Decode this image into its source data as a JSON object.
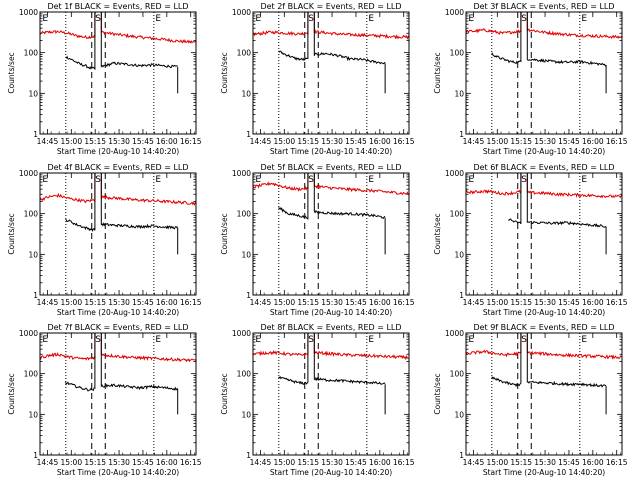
{
  "chart_data": {
    "type": "line",
    "shared": {
      "xlabel": "Start Time (20-Aug-10 14:40:20)",
      "ylabel": "Counts/sec",
      "x_tick_labels": [
        "14:45",
        "15:00",
        "15:15",
        "15:30",
        "15:45",
        "16:00",
        "16:15"
      ],
      "x_ticks_min": [
        4.67,
        19.67,
        34.67,
        49.67,
        64.67,
        79.67,
        94.67
      ],
      "xlim_min": [
        0,
        98
      ],
      "y_tick_labels": [
        "1",
        "10",
        "100",
        "1000"
      ],
      "ylim": [
        1,
        1000
      ],
      "yscale": "log",
      "gap_min": [
        34.5,
        38.5
      ],
      "dashed_lines_min": [
        32.5,
        41.0
      ],
      "dotted_lines_min": [
        16.2,
        71.5
      ],
      "marker_labels": [
        "E",
        "S",
        "E"
      ],
      "marker_positions_min": [
        1.5,
        36.5,
        72.5
      ],
      "series_names": [
        "Events",
        "LLD"
      ],
      "series_colors": [
        "#000000",
        "#e00000"
      ]
    },
    "panels": [
      {
        "title": "Det 1f BLACK = Events, RED = LLD",
        "events": [
          80,
          70,
          60,
          52,
          48,
          42,
          40
        ],
        "events_after": [
          45,
          55,
          52,
          48,
          50,
          47,
          45
        ],
        "lld": [
          300,
          320,
          330,
          300,
          260,
          240,
          250
        ],
        "lld_after": [
          320,
          280,
          250,
          230,
          210,
          190,
          180
        ],
        "event_start": 16,
        "event_end": 86.5
      },
      {
        "title": "Det 2f BLACK = Events, RED = LLD",
        "events": [
          110,
          95,
          85,
          75,
          70,
          68,
          70
        ],
        "events_after": [
          90,
          95,
          85,
          70,
          68,
          60,
          55
        ],
        "lld": [
          280,
          300,
          320,
          310,
          300,
          290,
          310
        ],
        "lld_after": [
          330,
          300,
          280,
          270,
          260,
          250,
          240
        ],
        "event_start": 16,
        "event_end": 83
      },
      {
        "title": "Det 3f BLACK = Events, RED = LLD",
        "events": [
          95,
          80,
          72,
          65,
          60,
          58,
          60
        ],
        "events_after": [
          70,
          65,
          60,
          58,
          60,
          55,
          50
        ],
        "lld": [
          330,
          340,
          360,
          330,
          300,
          320,
          340
        ],
        "lld_after": [
          370,
          320,
          290,
          270,
          260,
          250,
          240
        ],
        "event_start": 16,
        "event_end": 88
      },
      {
        "title": "Det 4f BLACK = Events, RED = LLD",
        "events": [
          70,
          65,
          55,
          50,
          45,
          42,
          40
        ],
        "events_after": [
          55,
          52,
          50,
          48,
          50,
          47,
          45
        ],
        "lld": [
          220,
          260,
          280,
          240,
          220,
          200,
          220
        ],
        "lld_after": [
          260,
          240,
          220,
          210,
          200,
          190,
          180
        ],
        "event_start": 16,
        "event_end": 86.5
      },
      {
        "title": "Det 5f BLACK = Events, RED = LLD",
        "events": [
          140,
          120,
          100,
          95,
          90,
          85,
          80
        ],
        "events_after": [
          110,
          105,
          100,
          100,
          95,
          90,
          80
        ],
        "lld": [
          450,
          500,
          560,
          480,
          420,
          400,
          420
        ],
        "lld_after": [
          480,
          430,
          400,
          380,
          360,
          330,
          310
        ],
        "event_start": 16,
        "event_end": 83
      },
      {
        "title": "Det 6f BLACK = Events, RED = LLD",
        "events": [
          0,
          75,
          70,
          65,
          62,
          60,
          58
        ],
        "events_after": [
          62,
          60,
          58,
          60,
          56,
          52,
          48
        ],
        "lld": [
          340,
          340,
          360,
          340,
          310,
          320,
          350
        ],
        "lld_after": [
          330,
          320,
          300,
          290,
          280,
          270,
          260
        ],
        "event_start": 26.5,
        "event_end": 88
      },
      {
        "title": "Det 7f BLACK = Events, RED = LLD",
        "events": [
          60,
          55,
          50,
          45,
          42,
          40,
          42
        ],
        "events_after": [
          50,
          52,
          48,
          45,
          48,
          45,
          42
        ],
        "lld": [
          250,
          280,
          300,
          260,
          240,
          230,
          250
        ],
        "lld_after": [
          290,
          270,
          250,
          240,
          230,
          220,
          210
        ],
        "event_start": 16,
        "event_end": 86.5
      },
      {
        "title": "Det 8f BLACK = Events, RED = LLD",
        "events": [
          80,
          75,
          70,
          65,
          60,
          58,
          60
        ],
        "events_after": [
          75,
          70,
          68,
          65,
          62,
          60,
          55
        ],
        "lld": [
          300,
          320,
          330,
          320,
          300,
          290,
          300
        ],
        "lld_after": [
          330,
          310,
          290,
          280,
          270,
          260,
          250
        ],
        "event_start": 16,
        "event_end": 83
      },
      {
        "title": "Det 9f BLACK = Events, RED = LLD",
        "events": [
          80,
          72,
          65,
          60,
          55,
          53,
          55
        ],
        "events_after": [
          62,
          60,
          58,
          55,
          56,
          52,
          50
        ],
        "lld": [
          310,
          330,
          350,
          320,
          290,
          300,
          320
        ],
        "lld_after": [
          330,
          310,
          290,
          280,
          270,
          260,
          250
        ],
        "event_start": 16,
        "event_end": 88
      }
    ]
  }
}
